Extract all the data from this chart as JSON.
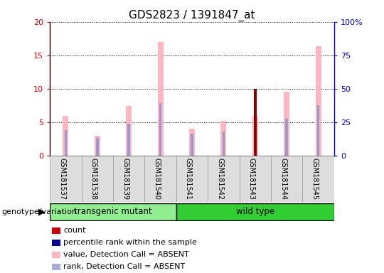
{
  "title": "GDS2823 / 1391847_at",
  "samples": [
    "GSM181537",
    "GSM181538",
    "GSM181539",
    "GSM181540",
    "GSM181541",
    "GSM181542",
    "GSM181543",
    "GSM181544",
    "GSM181545"
  ],
  "groups": [
    "transgenic mutant",
    "transgenic mutant",
    "transgenic mutant",
    "transgenic mutant",
    "wild type",
    "wild type",
    "wild type",
    "wild type",
    "wild type"
  ],
  "group_colors": {
    "transgenic mutant": "#90EE90",
    "wild type": "#32CD32"
  },
  "ylim_left": [
    0,
    20
  ],
  "ylim_right": [
    0,
    100
  ],
  "yticks_left": [
    0,
    5,
    10,
    15,
    20
  ],
  "ytick_labels_left": [
    "0",
    "5",
    "10",
    "15",
    "20"
  ],
  "yticks_right": [
    0,
    25,
    50,
    75,
    100
  ],
  "ytick_labels_right": [
    "0",
    "25",
    "50",
    "75",
    "100%"
  ],
  "pink_value": [
    5.9,
    3.0,
    7.4,
    17.0,
    4.0,
    5.2,
    5.9,
    9.6,
    16.4
  ],
  "blue_rank": [
    3.8,
    2.6,
    4.8,
    7.9,
    3.3,
    3.6,
    5.8,
    5.5,
    7.5
  ],
  "red_count": [
    0,
    0,
    0,
    0,
    0,
    0,
    10.0,
    0,
    0
  ],
  "pink_color": "#FFB6C1",
  "blue_color": "#9999CC",
  "red_color": "#8B0000",
  "left_axis_color": "#CC0000",
  "right_axis_color": "#0000CC",
  "bg_color": "#FFFFFF",
  "plot_bg": "#FFFFFF",
  "bar_width": 0.18,
  "pink_bar_width": 0.18,
  "blue_bar_width": 0.08,
  "red_bar_width": 0.1,
  "group_label": "genotype/variation",
  "legend_items": [
    {
      "label": "count",
      "color": "#CC0000"
    },
    {
      "label": "percentile rank within the sample",
      "color": "#000099"
    },
    {
      "label": "value, Detection Call = ABSENT",
      "color": "#FFB6C1"
    },
    {
      "label": "rank, Detection Call = ABSENT",
      "color": "#AAAADD"
    }
  ],
  "sample_box_color": "#DDDDDD",
  "sample_box_edge": "#999999"
}
